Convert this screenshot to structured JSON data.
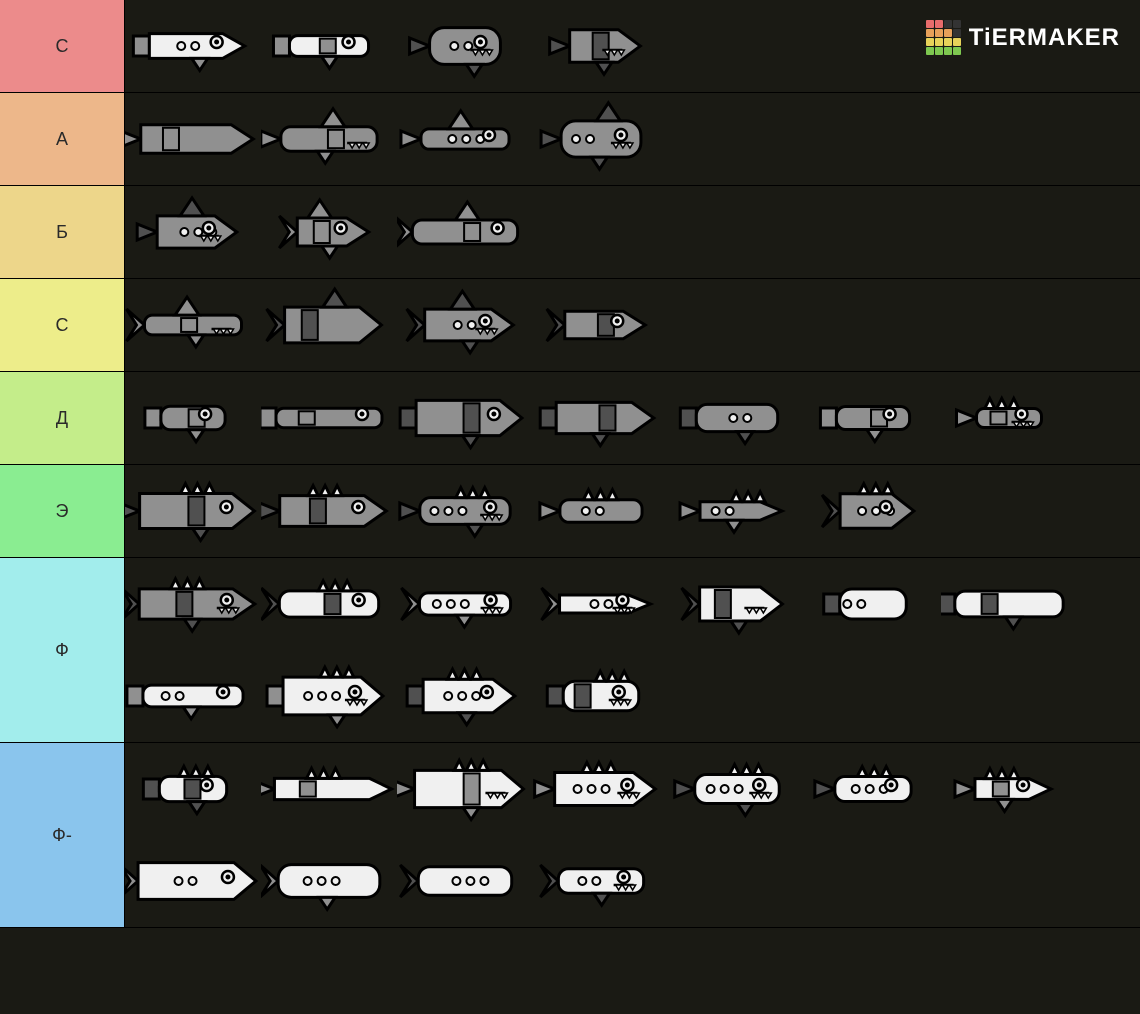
{
  "logo": {
    "text": "TiERMAKER",
    "grid_colors": [
      "#e86c6c",
      "#e86c6c",
      "#333",
      "#333",
      "#e8a05a",
      "#e8a05a",
      "#e8a05a",
      "#333",
      "#e8d25a",
      "#e8d25a",
      "#e8d25a",
      "#e8d25a",
      "#7ec850",
      "#7ec850",
      "#7ec850",
      "#7ec850"
    ]
  },
  "background_color": "#1a1a14",
  "tiers": [
    {
      "label": "С",
      "color": "#ec8b8b",
      "items": [
        1,
        2,
        3,
        4
      ]
    },
    {
      "label": "А",
      "color": "#edb78a",
      "items": [
        5,
        6,
        7,
        8
      ]
    },
    {
      "label": "Б",
      "color": "#edd68a",
      "items": [
        9,
        10,
        11
      ]
    },
    {
      "label": "С",
      "color": "#eded8a",
      "items": [
        12,
        13,
        14,
        15
      ]
    },
    {
      "label": "Д",
      "color": "#c4ed8a",
      "items": [
        16,
        17,
        18,
        19,
        20,
        21,
        22
      ]
    },
    {
      "label": "Э",
      "color": "#8aed91",
      "items": [
        23,
        24,
        25,
        26,
        27,
        28
      ]
    },
    {
      "label": "Ф",
      "color": "#a2edec",
      "items": [
        29,
        30,
        31,
        32,
        33,
        34,
        35,
        36,
        37,
        38,
        39
      ]
    },
    {
      "label": "Ф-",
      "color": "#8ac5ed",
      "items": [
        40,
        41,
        42,
        43,
        44,
        45,
        46,
        47,
        48,
        49,
        50
      ]
    }
  ],
  "item_style": {
    "fill_light": "#f0f0f0",
    "fill_mid": "#909090",
    "fill_dark": "#505050",
    "stroke": "#000000",
    "stroke_width": 3
  }
}
